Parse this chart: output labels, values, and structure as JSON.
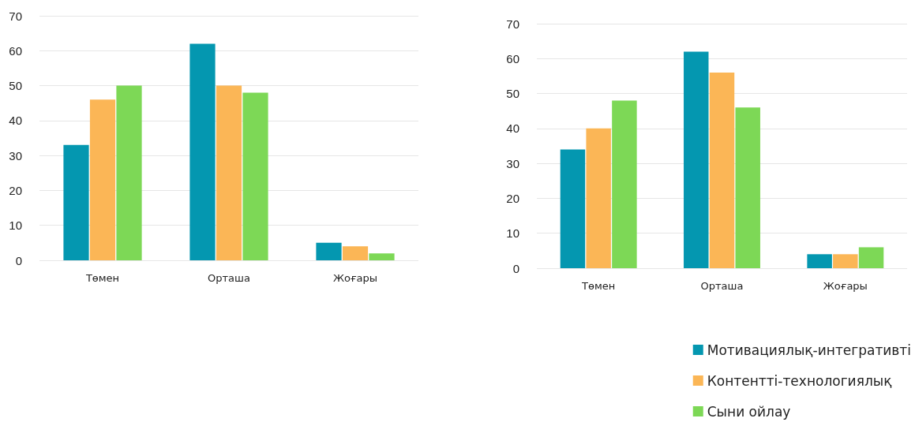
{
  "chart_data": [
    {
      "type": "bar",
      "categories": [
        "Төмен",
        "Орташа",
        "Жоғары"
      ],
      "series": [
        {
          "color": "#0497b0",
          "values": [
            33,
            62,
            5
          ]
        },
        {
          "color": "#fbb656",
          "values": [
            46,
            50,
            4
          ]
        },
        {
          "color": "#7dd856",
          "values": [
            50,
            48,
            2
          ]
        }
      ],
      "ylim": [
        0,
        70
      ],
      "yticks": [
        0,
        10,
        20,
        30,
        40,
        50,
        60,
        70
      ],
      "grid": "y",
      "legend": false
    },
    {
      "type": "bar",
      "categories": [
        "Төмен",
        "Орташа",
        "Жоғары"
      ],
      "series": [
        {
          "name": "Мотивациялық-интегративті",
          "color": "#0497b0",
          "values": [
            34,
            62,
            4
          ]
        },
        {
          "name": "Контентті-технологиялық",
          "color": "#fbb656",
          "values": [
            40,
            56,
            4
          ]
        },
        {
          "name": "Сыни ойлау",
          "color": "#7dd856",
          "values": [
            48,
            46,
            6
          ]
        }
      ],
      "ylim": [
        0,
        70
      ],
      "yticks": [
        0,
        10,
        20,
        30,
        40,
        50,
        60,
        70
      ],
      "grid": "y",
      "legend": "bottom right"
    }
  ]
}
